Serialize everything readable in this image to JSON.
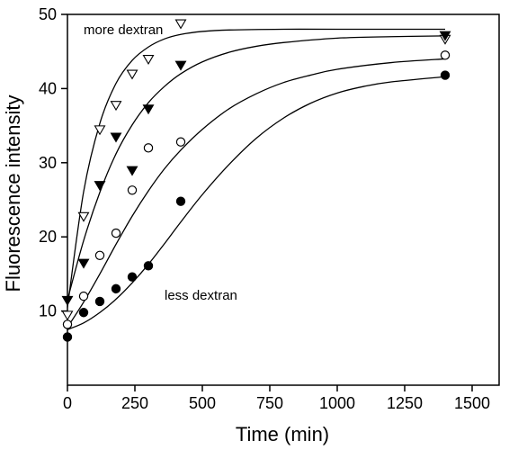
{
  "chart_data": {
    "type": "scatter",
    "xlabel": "Time (min)",
    "ylabel": "Fluorescence intensity",
    "xlim": [
      0,
      1600
    ],
    "ylim": [
      0,
      50
    ],
    "x_ticks": [
      0,
      250,
      500,
      750,
      1000,
      1250,
      1500
    ],
    "y_ticks": [
      10,
      20,
      30,
      40,
      50
    ],
    "grid": false,
    "annotations": [
      {
        "text": "more dextran",
        "x": 60,
        "y": 47.3
      },
      {
        "text": "less dextran",
        "x": 360,
        "y": 11.5
      }
    ],
    "series": [
      {
        "marker": "open-triangle-down",
        "points": [
          [
            0,
            9.5
          ],
          [
            60,
            22.8
          ],
          [
            120,
            34.5
          ],
          [
            180,
            37.8
          ],
          [
            240,
            42.0
          ],
          [
            300,
            44.0
          ],
          [
            420,
            48.8
          ],
          [
            1400,
            46.7
          ]
        ],
        "curve": [
          [
            0,
            10.5
          ],
          [
            60,
            26.1
          ],
          [
            120,
            35.3
          ],
          [
            180,
            40.7
          ],
          [
            240,
            43.8
          ],
          [
            300,
            45.6
          ],
          [
            360,
            46.7
          ],
          [
            420,
            47.3
          ],
          [
            500,
            47.7
          ],
          [
            600,
            47.9
          ],
          [
            800,
            48.0
          ],
          [
            1000,
            48.0
          ],
          [
            1400,
            48.0
          ]
        ]
      },
      {
        "marker": "filled-triangle-down",
        "points": [
          [
            0,
            11.5
          ],
          [
            60,
            16.5
          ],
          [
            120,
            27.0
          ],
          [
            180,
            33.5
          ],
          [
            240,
            29.0
          ],
          [
            300,
            37.3
          ],
          [
            420,
            43.2
          ],
          [
            1400,
            47.2
          ]
        ],
        "curve": [
          [
            0,
            11.5
          ],
          [
            60,
            19.5
          ],
          [
            120,
            26.0
          ],
          [
            180,
            31.2
          ],
          [
            240,
            35.1
          ],
          [
            300,
            38.1
          ],
          [
            360,
            40.3
          ],
          [
            420,
            42.0
          ],
          [
            500,
            43.6
          ],
          [
            600,
            44.9
          ],
          [
            700,
            45.7
          ],
          [
            800,
            46.2
          ],
          [
            1000,
            46.8
          ],
          [
            1200,
            47.0
          ],
          [
            1400,
            47.1
          ]
        ]
      },
      {
        "marker": "open-circle",
        "points": [
          [
            0,
            8.2
          ],
          [
            60,
            12.0
          ],
          [
            120,
            17.5
          ],
          [
            180,
            20.5
          ],
          [
            240,
            26.3
          ],
          [
            300,
            32.0
          ],
          [
            420,
            32.8
          ],
          [
            1400,
            44.5
          ]
        ],
        "curve": [
          [
            0,
            7.8
          ],
          [
            60,
            11.2
          ],
          [
            120,
            15.0
          ],
          [
            180,
            19.0
          ],
          [
            240,
            22.8
          ],
          [
            300,
            26.2
          ],
          [
            360,
            29.2
          ],
          [
            420,
            31.7
          ],
          [
            500,
            34.5
          ],
          [
            600,
            37.3
          ],
          [
            700,
            39.3
          ],
          [
            800,
            40.8
          ],
          [
            900,
            41.8
          ],
          [
            1000,
            42.6
          ],
          [
            1200,
            43.5
          ],
          [
            1400,
            44.0
          ]
        ]
      },
      {
        "marker": "filled-circle",
        "points": [
          [
            0,
            6.5
          ],
          [
            60,
            9.8
          ],
          [
            120,
            11.3
          ],
          [
            180,
            13.0
          ],
          [
            240,
            14.6
          ],
          [
            300,
            16.1
          ],
          [
            420,
            24.8
          ],
          [
            1400,
            41.8
          ]
        ],
        "curve": [
          [
            0,
            7.5
          ],
          [
            60,
            8.4
          ],
          [
            120,
            9.8
          ],
          [
            180,
            11.6
          ],
          [
            240,
            13.8
          ],
          [
            300,
            16.3
          ],
          [
            360,
            19.1
          ],
          [
            420,
            22.0
          ],
          [
            500,
            25.7
          ],
          [
            600,
            29.8
          ],
          [
            700,
            33.3
          ],
          [
            800,
            36.0
          ],
          [
            900,
            38.0
          ],
          [
            1000,
            39.4
          ],
          [
            1100,
            40.3
          ],
          [
            1200,
            40.9
          ],
          [
            1400,
            41.6
          ]
        ]
      }
    ]
  }
}
